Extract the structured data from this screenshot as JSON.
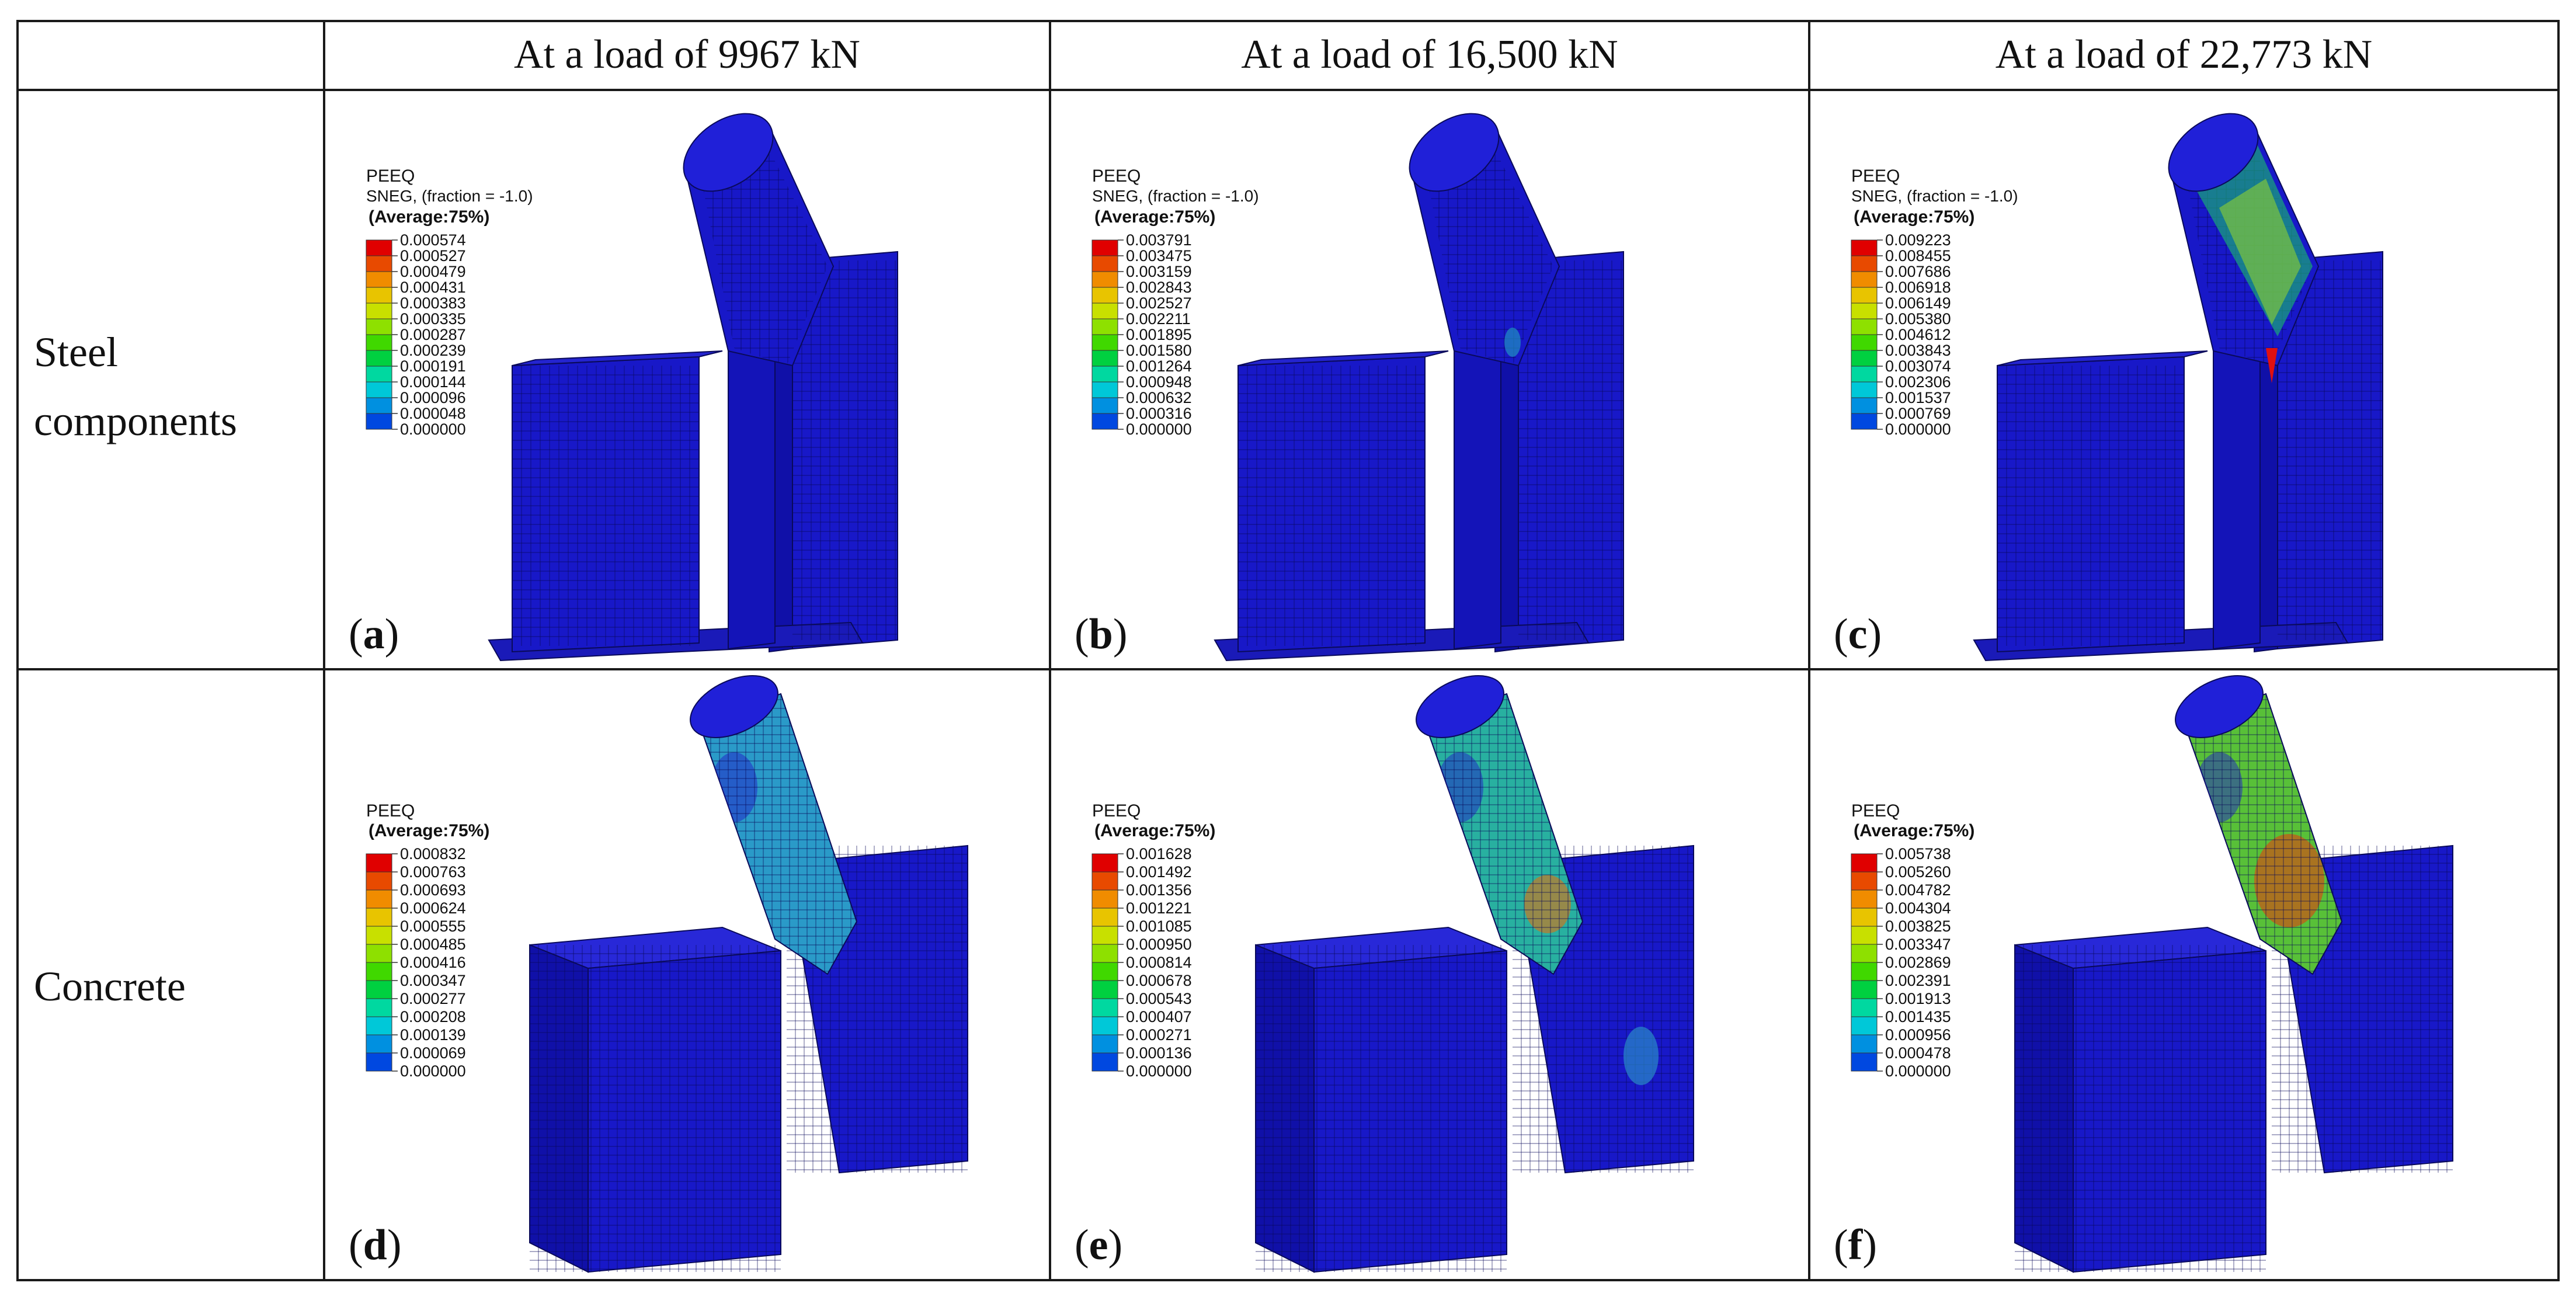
{
  "headers": [
    "At a load of 9967 kN",
    "At a load of 16,500 kN",
    "At a load of 22,773 kN"
  ],
  "rows": [
    {
      "label_lines": [
        "Steel",
        "components"
      ]
    },
    {
      "label_lines": [
        "Concrete"
      ]
    }
  ],
  "panels": [
    {
      "letter": "a",
      "legend": {
        "title": "PEEQ",
        "subtitle": "SNEG, (fraction = -1.0)",
        "average": "(Average:75%)",
        "values": [
          "0.000574",
          "0.000527",
          "0.000479",
          "0.000431",
          "0.000383",
          "0.000335",
          "0.000287",
          "0.000239",
          "0.000191",
          "0.000144",
          "0.000096",
          "0.000048",
          "0.000000"
        ]
      }
    },
    {
      "letter": "b",
      "legend": {
        "title": "PEEQ",
        "subtitle": "SNEG, (fraction = -1.0)",
        "average": "(Average:75%)",
        "values": [
          "0.003791",
          "0.003475",
          "0.003159",
          "0.002843",
          "0.002527",
          "0.002211",
          "0.001895",
          "0.001580",
          "0.001264",
          "0.000948",
          "0.000632",
          "0.000316",
          "0.000000"
        ]
      }
    },
    {
      "letter": "c",
      "legend": {
        "title": "PEEQ",
        "subtitle": "SNEG, (fraction = -1.0)",
        "average": "(Average:75%)",
        "values": [
          "0.009223",
          "0.008455",
          "0.007686",
          "0.006918",
          "0.006149",
          "0.005380",
          "0.004612",
          "0.003843",
          "0.003074",
          "0.002306",
          "0.001537",
          "0.000769",
          "0.000000"
        ]
      }
    },
    {
      "letter": "d",
      "legend": {
        "title": "PEEQ",
        "subtitle": "",
        "average": "(Average:75%)",
        "values": [
          "0.000832",
          "0.000763",
          "0.000693",
          "0.000624",
          "0.000555",
          "0.000485",
          "0.000416",
          "0.000347",
          "0.000277",
          "0.000208",
          "0.000139",
          "0.000069",
          "0.000000"
        ]
      }
    },
    {
      "letter": "e",
      "legend": {
        "title": "PEEQ",
        "subtitle": "",
        "average": "(Average:75%)",
        "values": [
          "0.001628",
          "0.001492",
          "0.001356",
          "0.001221",
          "0.001085",
          "0.000950",
          "0.000814",
          "0.000678",
          "0.000543",
          "0.000407",
          "0.000271",
          "0.000136",
          "0.000000"
        ]
      }
    },
    {
      "letter": "f",
      "legend": {
        "title": "PEEQ",
        "subtitle": "",
        "average": "(Average:75%)",
        "values": [
          "0.005738",
          "0.005260",
          "0.004782",
          "0.004304",
          "0.003825",
          "0.003347",
          "0.002869",
          "0.002391",
          "0.001913",
          "0.001435",
          "0.000956",
          "0.000478",
          "0.000000"
        ]
      }
    }
  ],
  "colormap": [
    "#e00000",
    "#e84a00",
    "#f08c00",
    "#e8c400",
    "#c8e000",
    "#8ee000",
    "#40d800",
    "#00d040",
    "#00d8a0",
    "#00c8d8",
    "#0090e0",
    "#0048e0",
    "#0010e0"
  ],
  "colors": {
    "model_blue": "#1818c8",
    "mesh": "#0a0a5a"
  }
}
